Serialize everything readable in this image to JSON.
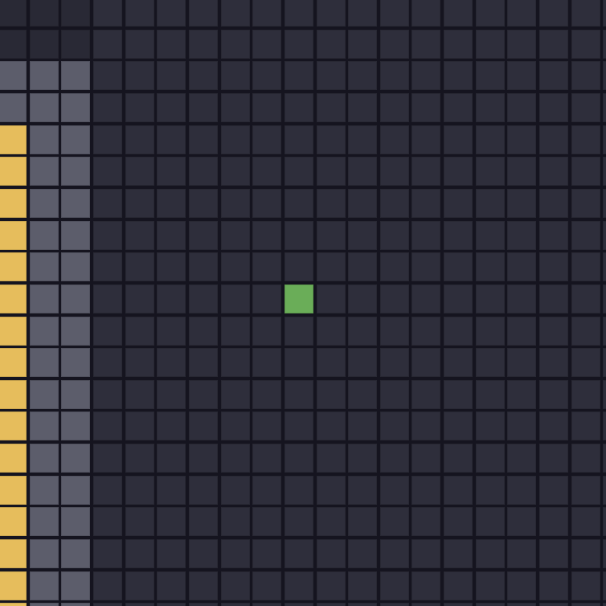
{
  "board": {
    "cols": 20,
    "rows": 20,
    "colors": {
      "empty": "#2e2e3b",
      "dim": "#292935",
      "trail": "#5c5d6b",
      "player": "#e6bd5c",
      "food": "#6aad58",
      "grid_line": "#15141f"
    },
    "regions": [
      {
        "type": "dim",
        "cols": [
          0,
          2
        ],
        "rows": [
          0,
          1
        ]
      },
      {
        "type": "trail",
        "cols": [
          0,
          2
        ],
        "rows": [
          2,
          19
        ]
      },
      {
        "type": "player",
        "cols": [
          0,
          0
        ],
        "rows": [
          4,
          19
        ]
      },
      {
        "type": "food",
        "cols": [
          9,
          9
        ],
        "rows": [
          9,
          9
        ]
      }
    ]
  }
}
